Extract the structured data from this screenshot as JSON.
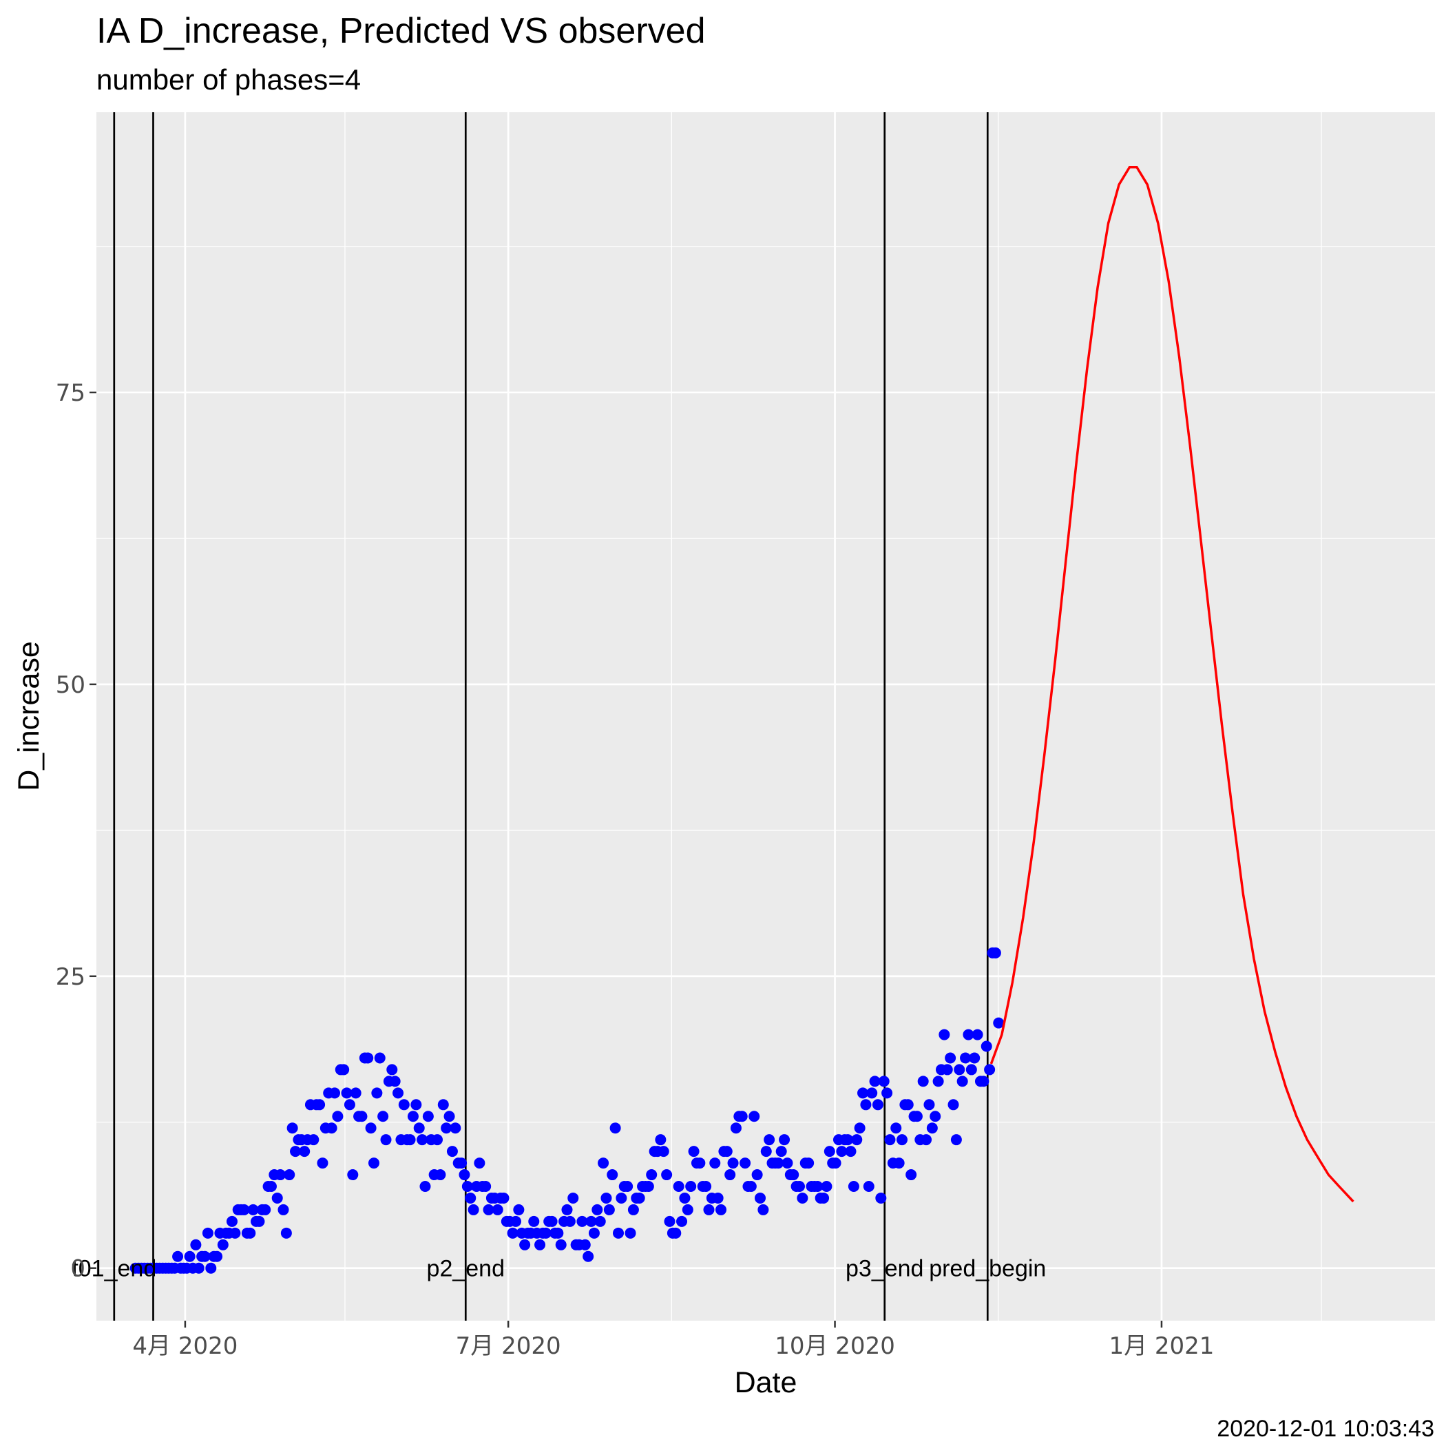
{
  "chart_data": {
    "type": "scatter",
    "title": "IA D_increase, Predicted VS observed",
    "subtitle": "number of phases=4",
    "xlabel": "Date",
    "ylabel": "D_increase",
    "caption": "2020-12-01 10:03:43",
    "xlim": [
      "2020-03-07",
      "2021-03-19"
    ],
    "ylim": [
      -4.5,
      99
    ],
    "y_ticks": [
      0,
      25,
      50,
      75
    ],
    "x_ticks": [
      {
        "date": "2020-04-01",
        "label": "4月 2020"
      },
      {
        "date": "2020-07-01",
        "label": "7月 2020"
      },
      {
        "date": "2020-10-01",
        "label": "10月 2020"
      },
      {
        "date": "2021-01-01",
        "label": "1月 2021"
      }
    ],
    "x_minor_ticks": [
      "2020-05-16",
      "2020-08-16",
      "2020-11-16",
      "2021-02-15"
    ],
    "y_minor_ticks": [
      12.5,
      37.5,
      62.5,
      87.5
    ],
    "grid": true,
    "background": "#ebebeb",
    "vlines": [
      {
        "date": "2020-03-25",
        "label": "t01_end"
      },
      {
        "date": "2020-03-25",
        "label": ""
      },
      {
        "date": "2020-06-21",
        "label": "p2_end"
      },
      {
        "date": "2020-10-16",
        "label": "p3_end"
      },
      {
        "date": "2020-11-14",
        "label": "pred_begin"
      }
    ],
    "observed": {
      "color": "#0000ff",
      "start_date": "2020-03-18",
      "values": [
        0,
        0,
        0,
        0,
        0,
        0,
        0,
        0,
        0,
        0,
        0,
        0,
        0,
        0,
        1,
        0,
        0,
        0,
        1,
        0,
        2,
        0,
        1,
        1,
        3,
        0,
        1,
        1,
        3,
        2,
        3,
        3,
        4,
        3,
        5,
        5,
        5,
        3,
        3,
        5,
        4,
        4,
        5,
        5,
        7,
        7,
        8,
        6,
        8,
        5,
        3,
        8,
        12,
        10,
        11,
        11,
        10,
        11,
        14,
        11,
        14,
        14,
        9,
        12,
        15,
        12,
        15,
        13,
        17,
        17,
        15,
        14,
        8,
        15,
        13,
        13,
        18,
        18,
        12,
        9,
        15,
        18,
        13,
        11,
        16,
        17,
        16,
        15,
        11,
        14,
        11,
        11,
        13,
        14,
        12,
        11,
        7,
        13,
        11,
        8,
        11,
        8,
        14,
        12,
        13,
        10,
        12,
        9,
        9,
        8,
        7,
        6,
        5,
        7,
        9,
        7,
        7,
        5,
        6,
        6,
        5,
        6,
        6,
        4,
        4,
        3,
        4,
        5,
        3,
        2,
        3,
        3,
        4,
        3,
        2,
        3,
        3,
        4,
        4,
        3,
        3,
        2,
        4,
        5,
        4,
        6,
        2,
        2,
        4,
        2,
        1,
        4,
        3,
        5,
        4,
        9,
        6,
        5,
        8,
        12,
        3,
        6,
        7,
        7,
        3,
        5,
        6,
        6,
        7,
        7,
        7,
        8,
        10,
        10,
        11,
        10,
        8,
        4,
        3,
        3,
        7,
        4,
        6,
        5,
        7,
        10,
        9,
        9,
        7,
        7,
        5,
        6,
        9,
        6,
        5,
        10,
        10,
        8,
        9,
        12,
        13,
        13,
        9,
        7,
        7,
        13,
        8,
        6,
        5,
        10,
        11,
        9,
        9,
        9,
        10,
        11,
        9,
        8,
        8,
        7,
        7,
        6,
        9,
        9,
        7,
        7,
        7,
        6,
        6,
        7,
        10,
        9,
        9,
        11,
        10,
        11,
        11,
        10,
        7,
        11,
        12,
        15,
        14,
        7,
        15,
        16,
        14,
        6,
        16,
        15,
        11,
        9,
        12,
        9,
        11,
        14,
        14,
        8,
        13,
        13,
        11,
        16,
        11,
        14,
        12,
        13,
        16,
        17,
        20,
        17,
        18,
        14,
        11,
        17,
        16,
        18,
        20,
        17,
        18,
        20,
        16,
        16,
        19,
        17,
        27,
        27,
        21
      ]
    },
    "predicted": {
      "color": "#ff0000",
      "points": [
        [
          "2020-11-14",
          17.5
        ],
        [
          "2020-11-17",
          20.0
        ],
        [
          "2020-11-20",
          24.5
        ],
        [
          "2020-11-23",
          30.0
        ],
        [
          "2020-11-26",
          36.5
        ],
        [
          "2020-11-29",
          44.0
        ],
        [
          "2020-12-02",
          52.0
        ],
        [
          "2020-12-05",
          60.5
        ],
        [
          "2020-12-08",
          69.0
        ],
        [
          "2020-12-11",
          77.0
        ],
        [
          "2020-12-14",
          84.0
        ],
        [
          "2020-12-17",
          89.5
        ],
        [
          "2020-12-20",
          92.8
        ],
        [
          "2020-12-23",
          94.3
        ],
        [
          "2020-12-25",
          94.3
        ],
        [
          "2020-12-28",
          92.8
        ],
        [
          "2020-12-31",
          89.5
        ],
        [
          "2021-01-03",
          84.5
        ],
        [
          "2021-01-06",
          78.0
        ],
        [
          "2021-01-09",
          70.5
        ],
        [
          "2021-01-12",
          62.5
        ],
        [
          "2021-01-15",
          54.5
        ],
        [
          "2021-01-18",
          46.5
        ],
        [
          "2021-01-21",
          39.0
        ],
        [
          "2021-01-24",
          32.0
        ],
        [
          "2021-01-27",
          26.5
        ],
        [
          "2021-01-30",
          22.0
        ],
        [
          "2021-02-02",
          18.5
        ],
        [
          "2021-02-05",
          15.5
        ],
        [
          "2021-02-08",
          13.0
        ],
        [
          "2021-02-11",
          11.0
        ],
        [
          "2021-02-14",
          9.5
        ],
        [
          "2021-02-17",
          8.0
        ],
        [
          "2021-02-20",
          7.0
        ],
        [
          "2021-02-24",
          5.7
        ]
      ]
    }
  }
}
